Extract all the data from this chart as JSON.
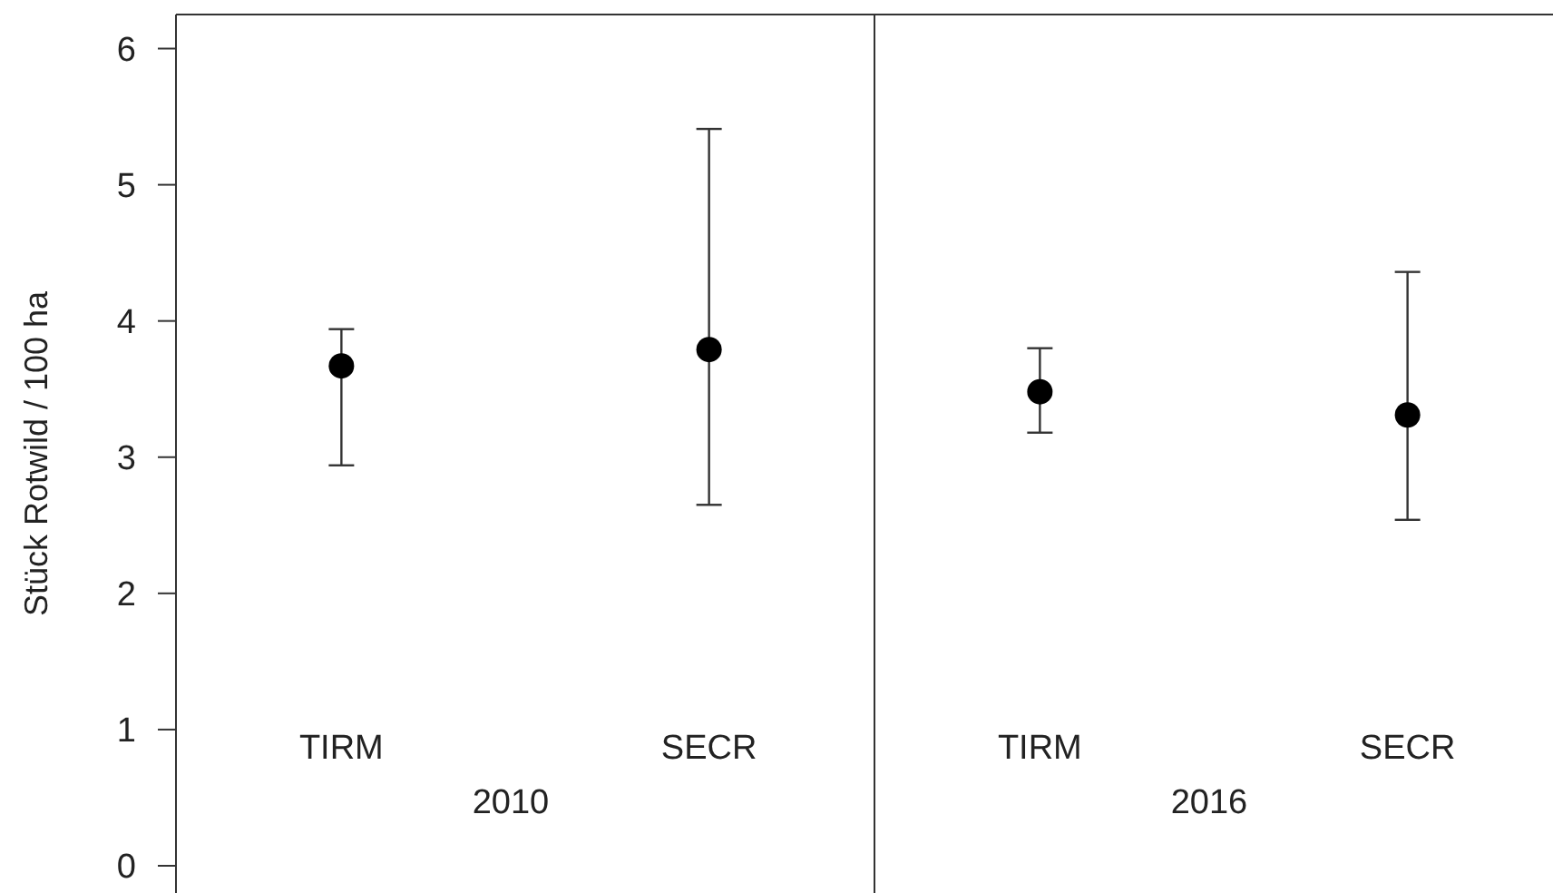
{
  "chart_data": [
    {
      "type": "scatter",
      "categories": [
        "TIRM",
        "SECR"
      ],
      "xlabel": "2010",
      "ylabel": "Stück Rotwild / 100 ha",
      "ylim": [
        -0.2,
        6.25
      ],
      "yticks": [
        0,
        1,
        2,
        3,
        4,
        5,
        6
      ],
      "marker": "circle",
      "series": [
        {
          "color": "#000000",
          "values": [
            3.67,
            3.79
          ],
          "errors": [
            [
              2.94,
              3.94
            ],
            [
              2.65,
              5.41
            ]
          ]
        }
      ]
    },
    {
      "type": "scatter",
      "categories": [
        "TIRM",
        "SECR"
      ],
      "xlabel": "2016",
      "ylim": [
        -0.2,
        6.25
      ],
      "tick_labels": "x",
      "marker": "circle",
      "series": [
        {
          "color": "#000000",
          "values": [
            3.48,
            3.31
          ],
          "errors": [
            [
              3.18,
              3.8
            ],
            [
              2.54,
              4.36
            ]
          ]
        }
      ]
    }
  ]
}
